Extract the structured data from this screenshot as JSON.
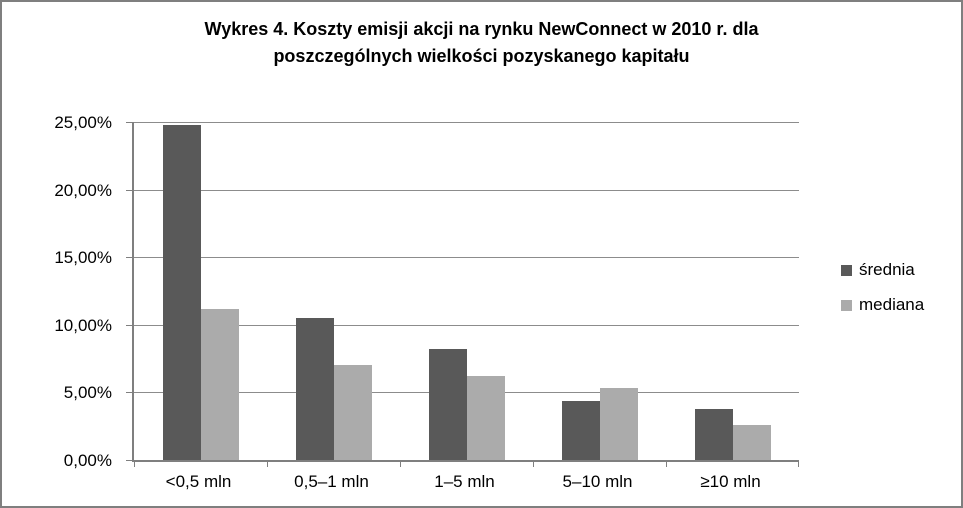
{
  "chart_data": {
    "type": "bar",
    "title": "Wykres 4. Koszty emisji  akcji na rynku NewConnect w 2010 r. dla poszczególnych wielkości pozyskanego kapitału",
    "title_lines": [
      "Wykres 4. Koszty emisji  akcji na rynku NewConnect w 2010 r. dla",
      "poszczególnych wielkości pozyskanego kapitału"
    ],
    "categories": [
      "<0,5 mln",
      "0,5–1 mln",
      "1–5 mln",
      "5–10 mln",
      "≥10 mln"
    ],
    "series": [
      {
        "name": "średnia",
        "color": "#595959",
        "values": [
          24.8,
          10.5,
          8.2,
          4.4,
          3.8
        ]
      },
      {
        "name": "mediana",
        "color": "#ABABAB",
        "values": [
          11.2,
          7.0,
          6.2,
          5.3,
          2.6
        ]
      }
    ],
    "unit": "%",
    "xlabel": "",
    "ylabel": "",
    "ylim": [
      0,
      25
    ],
    "yticks": [
      {
        "value": 0,
        "label": "0,00%"
      },
      {
        "value": 5,
        "label": "5,00%"
      },
      {
        "value": 10,
        "label": "10,00%"
      },
      {
        "value": 15,
        "label": "15,00%"
      },
      {
        "value": 20,
        "label": "20,00%"
      },
      {
        "value": 25,
        "label": "25,00%"
      }
    ],
    "grid": true,
    "legend_position": "right"
  },
  "colors": {
    "background": "#FFFFFF",
    "frame_border": "#7F7F7F",
    "gridline": "#8C8C8C",
    "axis": "#7F7F7F",
    "text": "#000000",
    "series_dark": "#595959",
    "series_light": "#ABABAB"
  }
}
